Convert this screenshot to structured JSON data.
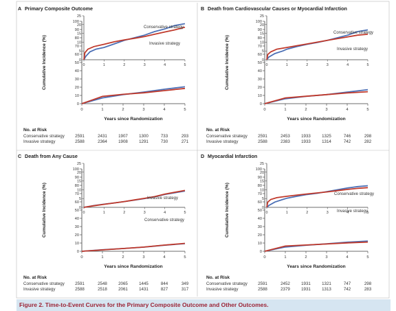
{
  "caption": "Figure 2. Time-to-Event Curves for the Primary Composite Outcome and Other Outcomes.",
  "colors": {
    "conservative": "#4b6fb5",
    "invasive": "#c0392b",
    "axis": "#3a3a3a"
  },
  "risk_title": "No. at Risk",
  "chart_data": [
    {
      "panel": "A",
      "title": "Primary Composite Outcome",
      "type": "line",
      "ylabel": "Cumulative Incidence (%)",
      "xlabel": "Years since Randomization",
      "ylim": [
        0,
        100
      ],
      "yticks": [
        0,
        10,
        20,
        30,
        40,
        50,
        60,
        70,
        80,
        90,
        100
      ],
      "xlim": [
        0,
        5
      ],
      "xticks": [
        0,
        1,
        2,
        3,
        4,
        5
      ],
      "inset": {
        "ylim": [
          0,
          25
        ],
        "yticks": [
          0,
          5,
          10,
          15,
          20,
          25
        ],
        "xticks": [
          0,
          1,
          2,
          3,
          4,
          5
        ],
        "series": [
          {
            "name": "Conservative strategy",
            "points": [
              [
                0,
                0
              ],
              [
                0.1,
                2
              ],
              [
                0.3,
                4.5
              ],
              [
                0.6,
                6
              ],
              [
                1,
                7
              ],
              [
                1.5,
                9
              ],
              [
                2,
                11
              ],
              [
                2.5,
                12.5
              ],
              [
                3,
                14
              ],
              [
                3.5,
                16
              ],
              [
                4,
                17.5
              ],
              [
                4.5,
                19.5
              ],
              [
                5,
                20.5
              ]
            ]
          },
          {
            "name": "Invasive strategy",
            "points": [
              [
                0,
                0
              ],
              [
                0.05,
                4
              ],
              [
                0.2,
                6
              ],
              [
                0.5,
                7.5
              ],
              [
                1,
                8.8
              ],
              [
                1.5,
                10.2
              ],
              [
                2,
                11.3
              ],
              [
                2.5,
                12.2
              ],
              [
                3,
                13.2
              ],
              [
                3.5,
                14.5
              ],
              [
                4,
                15.8
              ],
              [
                4.5,
                17
              ],
              [
                5,
                18.5
              ]
            ]
          }
        ],
        "labels": [
          {
            "text": "Conservative strategy",
            "series": 0
          },
          {
            "text": "Invasive strategy",
            "series": 1
          }
        ]
      },
      "series": [
        {
          "name": "Conservative strategy",
          "points": [
            [
              0,
              0
            ],
            [
              1,
              7
            ],
            [
              2,
              11
            ],
            [
              3,
              14
            ],
            [
              4,
              17.5
            ],
            [
              5,
              20.5
            ]
          ]
        },
        {
          "name": "Invasive strategy",
          "points": [
            [
              0,
              0
            ],
            [
              1,
              8.8
            ],
            [
              2,
              11.3
            ],
            [
              3,
              13.2
            ],
            [
              4,
              15.8
            ],
            [
              5,
              18.5
            ]
          ]
        }
      ],
      "risk": [
        {
          "label": "Conservative strategy",
          "values": [
            "2591",
            "2431",
            "1907",
            "1300",
            "733",
            "293"
          ]
        },
        {
          "label": "Invasive strategy",
          "values": [
            "2588",
            "2364",
            "1908",
            "1291",
            "730",
            "271"
          ]
        }
      ]
    },
    {
      "panel": "B",
      "title": "Death from Cardiovascular Causes or Myocardial Infarction",
      "type": "line",
      "ylabel": "Cumulative Incidence (%)",
      "xlabel": "Years since Randomization",
      "ylim": [
        0,
        100
      ],
      "yticks": [
        0,
        10,
        20,
        30,
        40,
        50,
        60,
        70,
        80,
        90,
        100
      ],
      "xlim": [
        0,
        5
      ],
      "xticks": [
        0,
        1,
        2,
        3,
        4,
        5
      ],
      "inset": {
        "ylim": [
          0,
          25
        ],
        "yticks": [
          0,
          5,
          10,
          15,
          20,
          25
        ],
        "xticks": [
          0,
          1,
          2,
          3,
          4,
          5
        ],
        "series": [
          {
            "name": "Conservative strategy",
            "points": [
              [
                0,
                0
              ],
              [
                0.1,
                1.5
              ],
              [
                0.4,
                3.5
              ],
              [
                0.8,
                5
              ],
              [
                1,
                6
              ],
              [
                1.5,
                7.5
              ],
              [
                2,
                8.8
              ],
              [
                2.5,
                9.8
              ],
              [
                3,
                11
              ],
              [
                3.5,
                12.5
              ],
              [
                4,
                14
              ],
              [
                4.5,
                16
              ],
              [
                5,
                17
              ]
            ]
          },
          {
            "name": "Invasive strategy",
            "points": [
              [
                0,
                0
              ],
              [
                0.05,
                3
              ],
              [
                0.2,
                4.5
              ],
              [
                0.5,
                6
              ],
              [
                1,
                7
              ],
              [
                1.5,
                8
              ],
              [
                2,
                9
              ],
              [
                2.5,
                10
              ],
              [
                3,
                11
              ],
              [
                3.5,
                12
              ],
              [
                4,
                13
              ],
              [
                4.5,
                14
              ],
              [
                5,
                14.5
              ]
            ]
          }
        ],
        "labels": [
          {
            "text": "Conservative strategy",
            "series": 0
          },
          {
            "text": "Invasive strategy",
            "series": 1
          }
        ]
      },
      "series": [
        {
          "name": "Conservative strategy",
          "points": [
            [
              0,
              0
            ],
            [
              1,
              6
            ],
            [
              2,
              8.8
            ],
            [
              3,
              11
            ],
            [
              4,
              14
            ],
            [
              5,
              17
            ]
          ]
        },
        {
          "name": "Invasive strategy",
          "points": [
            [
              0,
              0
            ],
            [
              1,
              7
            ],
            [
              2,
              9
            ],
            [
              3,
              11
            ],
            [
              4,
              13
            ],
            [
              5,
              14.5
            ]
          ]
        }
      ],
      "risk": [
        {
          "label": "Conservative strategy",
          "values": [
            "2591",
            "2453",
            "1933",
            "1325",
            "746",
            "298"
          ]
        },
        {
          "label": "Invasive strategy",
          "values": [
            "2588",
            "2383",
            "1933",
            "1314",
            "742",
            "282"
          ]
        }
      ]
    },
    {
      "panel": "C",
      "title": "Death from Any Cause",
      "type": "line",
      "ylabel": "Cumulative Incidence (%)",
      "xlabel": "Years since Randomization",
      "ylim": [
        0,
        100
      ],
      "yticks": [
        0,
        10,
        20,
        30,
        40,
        50,
        60,
        70,
        80,
        90,
        100
      ],
      "xlim": [
        0,
        5
      ],
      "xticks": [
        0,
        1,
        2,
        3,
        4,
        5
      ],
      "inset": {
        "ylim": [
          0,
          25
        ],
        "yticks": [
          0,
          5,
          10,
          15,
          20,
          25
        ],
        "xticks": [
          0,
          1,
          2,
          3,
          4,
          5
        ],
        "series": [
          {
            "name": "Conservative strategy",
            "points": [
              [
                0,
                0
              ],
              [
                0.5,
                1
              ],
              [
                1,
                1.8
              ],
              [
                1.5,
                2.5
              ],
              [
                2,
                3.3
              ],
              [
                2.5,
                4.1
              ],
              [
                3,
                5
              ],
              [
                3.5,
                6
              ],
              [
                4,
                7.3
              ],
              [
                4.5,
                8.3
              ],
              [
                5,
                9.3
              ]
            ]
          },
          {
            "name": "Invasive strategy",
            "points": [
              [
                0,
                0
              ],
              [
                0.5,
                0.9
              ],
              [
                1,
                1.7
              ],
              [
                1.5,
                2.5
              ],
              [
                2,
                3.3
              ],
              [
                2.5,
                4.2
              ],
              [
                3,
                5.1
              ],
              [
                3.5,
                6.1
              ],
              [
                4,
                7.5
              ],
              [
                4.5,
                8.6
              ],
              [
                5,
                9.6
              ]
            ]
          }
        ],
        "labels": [
          {
            "text": "Invasive strategy",
            "series": 1
          },
          {
            "text": "Conservative strategy",
            "series": 0
          }
        ]
      },
      "series": [
        {
          "name": "Conservative strategy",
          "points": [
            [
              0,
              0
            ],
            [
              1,
              1.8
            ],
            [
              2,
              3.3
            ],
            [
              3,
              5
            ],
            [
              4,
              7.3
            ],
            [
              5,
              9.3
            ]
          ]
        },
        {
          "name": "Invasive strategy",
          "points": [
            [
              0,
              0
            ],
            [
              1,
              1.7
            ],
            [
              2,
              3.3
            ],
            [
              3,
              5.1
            ],
            [
              4,
              7.5
            ],
            [
              5,
              9.6
            ]
          ]
        }
      ],
      "risk": [
        {
          "label": "Conservative strategy",
          "values": [
            "2591",
            "2548",
            "2065",
            "1445",
            "844",
            "349"
          ]
        },
        {
          "label": "Invasive strategy",
          "values": [
            "2588",
            "2518",
            "2061",
            "1431",
            "827",
            "317"
          ]
        }
      ]
    },
    {
      "panel": "D",
      "title": "Myocardial Infarction",
      "type": "line",
      "ylabel": "Cumulative Incidence (%)",
      "xlabel": "Years since Randomization",
      "ylim": [
        0,
        100
      ],
      "yticks": [
        0,
        10,
        20,
        30,
        40,
        50,
        60,
        70,
        80,
        90,
        100
      ],
      "xlim": [
        0,
        5
      ],
      "xticks": [
        0,
        1,
        2,
        3,
        4,
        5
      ],
      "inset": {
        "ylim": [
          0,
          25
        ],
        "yticks": [
          0,
          5,
          10,
          15,
          20,
          25
        ],
        "xticks": [
          0,
          1,
          2,
          3,
          4,
          5
        ],
        "series": [
          {
            "name": "Conservative strategy",
            "points": [
              [
                0,
                0
              ],
              [
                0.1,
                1
              ],
              [
                0.4,
                3
              ],
              [
                0.8,
                4.5
              ],
              [
                1,
                5.2
              ],
              [
                1.5,
                6.3
              ],
              [
                2,
                7.3
              ],
              [
                2.5,
                8
              ],
              [
                3,
                9
              ],
              [
                3.5,
                10
              ],
              [
                4,
                11
              ],
              [
                4.5,
                11.8
              ],
              [
                5,
                12.3
              ]
            ]
          },
          {
            "name": "Invasive strategy",
            "points": [
              [
                0,
                0
              ],
              [
                0.05,
                3
              ],
              [
                0.2,
                4.5
              ],
              [
                0.5,
                5.5
              ],
              [
                1,
                6.3
              ],
              [
                1.5,
                7
              ],
              [
                2,
                7.6
              ],
              [
                2.5,
                8.2
              ],
              [
                3,
                8.8
              ],
              [
                3.5,
                9.5
              ],
              [
                4,
                10.2
              ],
              [
                4.5,
                10.8
              ],
              [
                5,
                11.2
              ]
            ]
          }
        ],
        "labels": [
          {
            "text": "Conservative strategy",
            "series": 0
          },
          {
            "text": "Invasive strategy",
            "series": 1
          }
        ]
      },
      "series": [
        {
          "name": "Conservative strategy",
          "points": [
            [
              0,
              0
            ],
            [
              1,
              5.2
            ],
            [
              2,
              7.3
            ],
            [
              3,
              9
            ],
            [
              4,
              11
            ],
            [
              5,
              12.3
            ]
          ]
        },
        {
          "name": "Invasive strategy",
          "points": [
            [
              0,
              0
            ],
            [
              1,
              6.3
            ],
            [
              2,
              7.6
            ],
            [
              3,
              8.8
            ],
            [
              4,
              10.2
            ],
            [
              5,
              11.2
            ]
          ]
        }
      ],
      "risk": [
        {
          "label": "Conservative strategy",
          "values": [
            "2591",
            "2452",
            "1931",
            "1321",
            "747",
            "298"
          ]
        },
        {
          "label": "Invasive strategy",
          "values": [
            "2588",
            "2379",
            "1931",
            "1313",
            "742",
            "283"
          ]
        }
      ]
    }
  ]
}
